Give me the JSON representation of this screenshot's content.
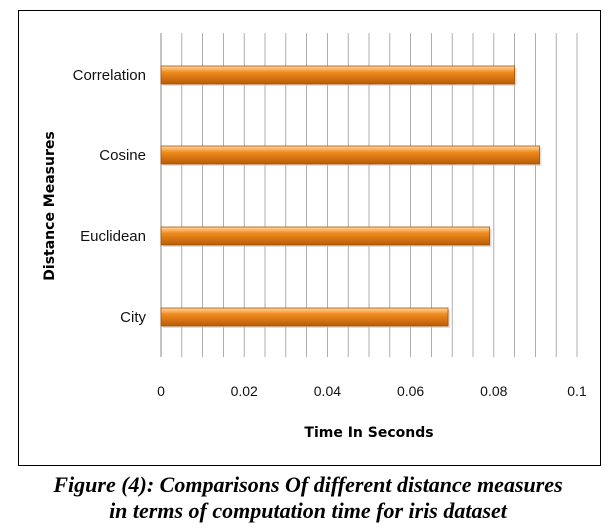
{
  "chart_data": {
    "type": "bar",
    "orientation": "horizontal",
    "categories": [
      "Correlation",
      "Cosine",
      "Euclidean",
      "City"
    ],
    "values": [
      0.085,
      0.091,
      0.079,
      0.069
    ],
    "xlabel": "Time In Seconds",
    "ylabel": "Distance Measures",
    "xlim": [
      0,
      0.1
    ],
    "xticks": [
      "0",
      "0.02",
      "0.04",
      "0.06",
      "0.08",
      "0.1"
    ],
    "grid": "vertical",
    "legend": "none",
    "bar_color": "#f08a1c",
    "bar_highlight": "#ffd9a6",
    "bar_shadow": "#b85d08"
  },
  "caption": {
    "line1": "Figure (4): Comparisons Of different distance measures",
    "line2": "in terms of computation time for iris dataset"
  }
}
